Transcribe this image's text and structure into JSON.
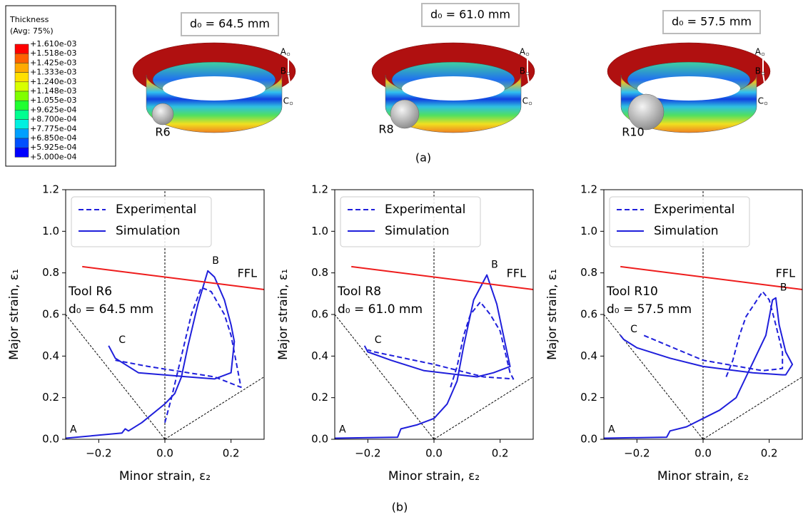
{
  "figure": {
    "contour_legend": {
      "title": "Thickness",
      "subtitle": "(Avg: 75%)",
      "colors": [
        "#ff0000",
        "#ff6000",
        "#ffaa00",
        "#ffe000",
        "#d8ff00",
        "#80ff00",
        "#20ff30",
        "#00ff90",
        "#00f0e0",
        "#00a0ff",
        "#0050ff",
        "#0000ff"
      ],
      "levels": [
        {
          "value": 0.00161,
          "label": "+1.610e-03"
        },
        {
          "value": 0.001518,
          "label": "+1.518e-03"
        },
        {
          "value": 0.001425,
          "label": "+1.425e-03"
        },
        {
          "value": 0.001333,
          "label": "+1.333e-03"
        },
        {
          "value": 0.00124,
          "label": "+1.240e-03"
        },
        {
          "value": 0.001148,
          "label": "+1.148e-03"
        },
        {
          "value": 0.001055,
          "label": "+1.055e-03"
        },
        {
          "value": 0.0009625,
          "label": "+9.625e-04"
        },
        {
          "value": 0.00087,
          "label": "+8.700e-04"
        },
        {
          "value": 0.0007775,
          "label": "+7.775e-04"
        },
        {
          "value": 0.000685,
          "label": "+6.850e-04"
        },
        {
          "value": 0.0005925,
          "label": "+5.925e-04"
        },
        {
          "value": 0.0005,
          "label": "+5.000e-04"
        }
      ]
    },
    "panels": [
      {
        "d0": "d₀ = 64.5 mm",
        "tool": "R6"
      },
      {
        "d0": "d₀ = 61.0 mm",
        "tool": "R8"
      },
      {
        "d0": "d₀ = 57.5 mm",
        "tool": "R10"
      }
    ],
    "points": [
      "A",
      "B",
      "C"
    ],
    "caption_a": "(a)",
    "caption_b": "(b)"
  },
  "chart_data": [
    {
      "type": "line",
      "xlabel": "Minor strain, ε₂",
      "ylabel": "Major strain, ε₁",
      "xlim": [
        -0.3,
        0.3
      ],
      "ylim": [
        0,
        1.2
      ],
      "xticks": [
        {
          "value": -0.2,
          "label": "−0.2"
        },
        {
          "value": 0,
          "label": "0.0"
        },
        0.2
      ],
      "yticks": [
        {
          "value": 0,
          "label": "0.0"
        },
        0.2,
        0.4,
        0.6,
        0.8,
        {
          "value": 1,
          "label": "1.0"
        },
        1.2
      ],
      "legend": "upper left",
      "annotations": [
        "Tool R6",
        "d₀ = 64.5 mm"
      ],
      "point_labels": [
        "A",
        "B",
        "C"
      ],
      "reference_lines": [
        {
          "x": [
            0,
            0
          ],
          "values": [
            0,
            1.2
          ]
        },
        {
          "x": [
            -0.3,
            0
          ],
          "values": [
            0.6,
            0
          ]
        },
        {
          "x": [
            0,
            0.3
          ],
          "values": [
            0,
            0.3
          ]
        }
      ],
      "series": [
        {
          "name": "Experimental",
          "color": "#1f1fdb",
          "dash": true,
          "x": [
            0,
            0.02,
            0.05,
            0.08,
            0.11,
            0.14,
            0.18,
            0.2,
            0.23,
            0.15,
            -0.05,
            -0.15
          ],
          "values": [
            0.08,
            0.2,
            0.4,
            0.6,
            0.73,
            0.71,
            0.6,
            0.5,
            0.25,
            0.3,
            0.35,
            0.38
          ]
        },
        {
          "name": "Simulation",
          "color": "#1f1fdb",
          "x": [
            -0.3,
            -0.13,
            -0.12,
            -0.11,
            -0.07,
            0,
            0.03,
            0.05,
            0.07,
            0.1,
            0.13,
            0.15,
            0.18,
            0.2,
            0.21,
            0.2,
            0.15,
            0.07,
            -0.08,
            -0.15,
            -0.17
          ],
          "values": [
            0.005,
            0.03,
            0.05,
            0.04,
            0.08,
            0.17,
            0.22,
            0.3,
            0.45,
            0.65,
            0.81,
            0.78,
            0.67,
            0.55,
            0.47,
            0.32,
            0.29,
            0.3,
            0.32,
            0.39,
            0.45
          ]
        },
        {
          "name": "FFL",
          "color": "#ee1c1c",
          "in_legend": false,
          "x": [
            -0.25,
            0.3
          ],
          "values": [
            0.83,
            0.72
          ]
        }
      ]
    },
    {
      "type": "line",
      "xlabel": "Minor strain, ε₂",
      "ylabel": "Major strain, ε₁",
      "xlim": [
        -0.3,
        0.3
      ],
      "ylim": [
        0,
        1.2
      ],
      "xticks": [
        {
          "value": -0.2,
          "label": "−0.2"
        },
        {
          "value": 0,
          "label": "0.0"
        },
        0.2
      ],
      "yticks": [
        {
          "value": 0,
          "label": "0.0"
        },
        0.2,
        0.4,
        0.6,
        0.8,
        {
          "value": 1,
          "label": "1.0"
        },
        1.2
      ],
      "legend": "upper left",
      "annotations": [
        "Tool R8",
        "d₀ = 61.0 mm"
      ],
      "point_labels": [
        "A",
        "B",
        "C"
      ],
      "reference_lines": [
        {
          "x": [
            0,
            0
          ],
          "values": [
            0,
            1.2
          ]
        },
        {
          "x": [
            -0.3,
            0
          ],
          "values": [
            0.6,
            0
          ]
        },
        {
          "x": [
            0,
            0.3
          ],
          "values": [
            0,
            0.3
          ]
        }
      ],
      "series": [
        {
          "name": "Experimental",
          "color": "#1f1fdb",
          "dash": true,
          "x": [
            0.05,
            0.07,
            0.09,
            0.11,
            0.14,
            0.17,
            0.2,
            0.23,
            0.24,
            0.15,
            0,
            -0.18,
            -0.2
          ],
          "values": [
            0.25,
            0.35,
            0.5,
            0.6,
            0.66,
            0.6,
            0.52,
            0.32,
            0.29,
            0.3,
            0.36,
            0.42,
            0.43
          ]
        },
        {
          "name": "Simulation",
          "color": "#1f1fdb",
          "x": [
            -0.3,
            -0.11,
            -0.1,
            -0.05,
            0,
            0.04,
            0.07,
            0.09,
            0.12,
            0.16,
            0.19,
            0.21,
            0.23,
            0.18,
            0.13,
            -0.03,
            -0.13,
            -0.2,
            -0.21
          ],
          "values": [
            0.005,
            0.01,
            0.05,
            0.07,
            0.1,
            0.17,
            0.28,
            0.45,
            0.67,
            0.79,
            0.65,
            0.5,
            0.35,
            0.32,
            0.3,
            0.33,
            0.38,
            0.42,
            0.45
          ]
        },
        {
          "name": "FFL",
          "color": "#ee1c1c",
          "in_legend": false,
          "x": [
            -0.25,
            0.3
          ],
          "values": [
            0.83,
            0.72
          ]
        }
      ]
    },
    {
      "type": "line",
      "xlabel": "Minor strain, ε₂",
      "ylabel": "Major strain, ε₁",
      "xlim": [
        -0.3,
        0.3
      ],
      "ylim": [
        0,
        1.2
      ],
      "xticks": [
        {
          "value": -0.2,
          "label": "−0.2"
        },
        {
          "value": 0,
          "label": "0.0"
        },
        0.2
      ],
      "yticks": [
        {
          "value": 0,
          "label": "0.0"
        },
        0.2,
        0.4,
        0.6,
        0.8,
        {
          "value": 1,
          "label": "1.0"
        },
        1.2
      ],
      "legend": "upper left",
      "annotations": [
        "Tool R10",
        "d₀ = 57.5 mm"
      ],
      "point_labels": [
        "A",
        "B",
        "C"
      ],
      "reference_lines": [
        {
          "x": [
            0,
            0
          ],
          "values": [
            0,
            1.2
          ]
        },
        {
          "x": [
            -0.3,
            0
          ],
          "values": [
            0.6,
            0
          ]
        },
        {
          "x": [
            0,
            0.3
          ],
          "values": [
            0,
            0.3
          ]
        }
      ],
      "series": [
        {
          "name": "Experimental",
          "color": "#1f1fdb",
          "dash": true,
          "x": [
            0.07,
            0.09,
            0.11,
            0.13,
            0.18,
            0.2,
            0.22,
            0.24,
            0.24,
            0.18,
            0,
            -0.18
          ],
          "values": [
            0.3,
            0.38,
            0.5,
            0.59,
            0.71,
            0.67,
            0.55,
            0.42,
            0.34,
            0.33,
            0.38,
            0.5
          ]
        },
        {
          "name": "Simulation",
          "color": "#1f1fdb",
          "x": [
            -0.3,
            -0.11,
            -0.1,
            -0.05,
            0,
            0.05,
            0.1,
            0.13,
            0.16,
            0.19,
            0.21,
            0.22,
            0.23,
            0.25,
            0.27,
            0.25,
            0.24,
            0.15,
            0,
            -0.1,
            -0.2,
            -0.24,
            -0.25
          ],
          "values": [
            0.005,
            0.01,
            0.04,
            0.06,
            0.1,
            0.14,
            0.2,
            0.3,
            0.4,
            0.5,
            0.67,
            0.68,
            0.55,
            0.42,
            0.36,
            0.31,
            0.31,
            0.32,
            0.35,
            0.39,
            0.44,
            0.48,
            0.5
          ]
        },
        {
          "name": "FFL",
          "color": "#ee1c1c",
          "in_legend": false,
          "x": [
            -0.25,
            0.3
          ],
          "values": [
            0.83,
            0.72
          ]
        }
      ]
    }
  ]
}
